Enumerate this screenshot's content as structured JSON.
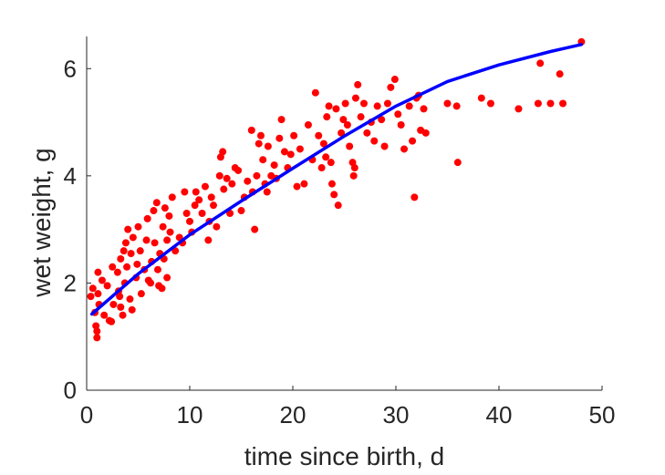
{
  "chart_data": {
    "type": "scatter",
    "xlabel": "time since birth, d",
    "ylabel": "wet weight, g",
    "xlim": [
      0,
      50
    ],
    "ylim": [
      0,
      6.6
    ],
    "xticks": [
      "0",
      "10",
      "20",
      "30",
      "40",
      "50"
    ],
    "yticks": [
      "0",
      "2",
      "4",
      "6"
    ],
    "grid": false,
    "box": false,
    "colors": {
      "points": "#ff0000",
      "curve": "#0000ff",
      "axis": "#262626"
    },
    "series": [
      {
        "type": "scatter",
        "points": [
          [
            0.4,
            1.75
          ],
          [
            0.6,
            1.9
          ],
          [
            0.8,
            1.45
          ],
          [
            0.9,
            1.2
          ],
          [
            1.0,
            1.1
          ],
          [
            1.0,
            0.98
          ],
          [
            1.1,
            1.8
          ],
          [
            1.1,
            2.2
          ],
          [
            1.2,
            1.6
          ],
          [
            1.5,
            2.05
          ],
          [
            1.7,
            1.4
          ],
          [
            2.0,
            1.95
          ],
          [
            2.2,
            1.3
          ],
          [
            2.4,
            1.28
          ],
          [
            2.5,
            2.3
          ],
          [
            2.6,
            1.6
          ],
          [
            3.0,
            2.2
          ],
          [
            3.1,
            1.85
          ],
          [
            3.2,
            1.75
          ],
          [
            3.3,
            1.55
          ],
          [
            3.3,
            2.45
          ],
          [
            3.5,
            1.4
          ],
          [
            3.6,
            2.6
          ],
          [
            3.7,
            2.0
          ],
          [
            3.8,
            2.75
          ],
          [
            3.9,
            2.3
          ],
          [
            4.0,
            3.0
          ],
          [
            4.2,
            1.7
          ],
          [
            4.3,
            2.55
          ],
          [
            4.4,
            1.5
          ],
          [
            4.5,
            2.85
          ],
          [
            4.8,
            2.1
          ],
          [
            4.9,
            2.35
          ],
          [
            5.0,
            3.05
          ],
          [
            5.2,
            2.6
          ],
          [
            5.3,
            1.8
          ],
          [
            5.6,
            2.25
          ],
          [
            5.8,
            2.8
          ],
          [
            5.9,
            3.2
          ],
          [
            6.0,
            2.05
          ],
          [
            6.2,
            2.0
          ],
          [
            6.3,
            2.4
          ],
          [
            6.5,
            3.35
          ],
          [
            6.6,
            2.75
          ],
          [
            6.8,
            3.5
          ],
          [
            6.9,
            2.25
          ],
          [
            7.0,
            1.95
          ],
          [
            7.1,
            2.55
          ],
          [
            7.3,
            1.9
          ],
          [
            7.4,
            3.05
          ],
          [
            7.5,
            2.45
          ],
          [
            7.6,
            3.4
          ],
          [
            7.8,
            2.8
          ],
          [
            7.8,
            2.1
          ],
          [
            8.0,
            3.25
          ],
          [
            8.1,
            2.95
          ],
          [
            8.3,
            3.6
          ],
          [
            8.6,
            2.6
          ],
          [
            9.0,
            2.85
          ],
          [
            9.3,
            2.75
          ],
          [
            9.5,
            3.7
          ],
          [
            9.7,
            3.3
          ],
          [
            10.0,
            3.15
          ],
          [
            10.2,
            2.95
          ],
          [
            10.5,
            3.45
          ],
          [
            10.6,
            3.7
          ],
          [
            10.9,
            3.55
          ],
          [
            11.2,
            3.3
          ],
          [
            11.5,
            3.8
          ],
          [
            11.8,
            2.8
          ],
          [
            11.9,
            3.15
          ],
          [
            12.1,
            3.6
          ],
          [
            12.3,
            3.45
          ],
          [
            12.6,
            3.05
          ],
          [
            12.9,
            4.0
          ],
          [
            13.0,
            4.35
          ],
          [
            13.2,
            4.45
          ],
          [
            13.3,
            3.75
          ],
          [
            13.6,
            3.95
          ],
          [
            13.9,
            3.3
          ],
          [
            14.1,
            3.85
          ],
          [
            14.4,
            4.15
          ],
          [
            14.7,
            4.1
          ],
          [
            15.0,
            3.35
          ],
          [
            15.3,
            3.6
          ],
          [
            15.6,
            3.9
          ],
          [
            16.0,
            4.85
          ],
          [
            16.1,
            3.7
          ],
          [
            16.3,
            3.0
          ],
          [
            16.5,
            4.0
          ],
          [
            16.7,
            4.6
          ],
          [
            16.9,
            4.75
          ],
          [
            17.1,
            4.3
          ],
          [
            17.3,
            3.85
          ],
          [
            17.5,
            3.7
          ],
          [
            17.6,
            4.55
          ],
          [
            17.9,
            4.0
          ],
          [
            18.2,
            4.2
          ],
          [
            18.4,
            3.95
          ],
          [
            18.7,
            4.7
          ],
          [
            18.9,
            5.05
          ],
          [
            19.2,
            4.45
          ],
          [
            19.5,
            4.15
          ],
          [
            19.8,
            4.4
          ],
          [
            20.1,
            4.75
          ],
          [
            20.4,
            3.8
          ],
          [
            20.7,
            4.5
          ],
          [
            21.1,
            3.85
          ],
          [
            21.5,
            4.95
          ],
          [
            21.9,
            4.3
          ],
          [
            22.2,
            5.55
          ],
          [
            22.5,
            4.75
          ],
          [
            22.8,
            4.15
          ],
          [
            23.0,
            4.6
          ],
          [
            23.2,
            4.35
          ],
          [
            23.3,
            5.1
          ],
          [
            23.5,
            5.3
          ],
          [
            23.7,
            4.25
          ],
          [
            23.8,
            3.85
          ],
          [
            24.0,
            3.65
          ],
          [
            24.2,
            5.25
          ],
          [
            24.4,
            3.45
          ],
          [
            24.7,
            4.8
          ],
          [
            24.9,
            5.05
          ],
          [
            25.1,
            5.35
          ],
          [
            25.3,
            4.95
          ],
          [
            25.5,
            4.55
          ],
          [
            25.8,
            4.25
          ],
          [
            25.9,
            4.0
          ],
          [
            26.0,
            4.15
          ],
          [
            26.1,
            5.45
          ],
          [
            26.3,
            5.7
          ],
          [
            26.6,
            5.1
          ],
          [
            26.9,
            5.35
          ],
          [
            27.2,
            4.8
          ],
          [
            27.6,
            5.0
          ],
          [
            27.9,
            4.65
          ],
          [
            28.2,
            5.3
          ],
          [
            28.6,
            5.05
          ],
          [
            28.9,
            4.55
          ],
          [
            29.2,
            5.35
          ],
          [
            29.5,
            5.65
          ],
          [
            29.9,
            5.8
          ],
          [
            30.2,
            5.15
          ],
          [
            30.5,
            4.95
          ],
          [
            30.8,
            4.5
          ],
          [
            31.3,
            5.3
          ],
          [
            31.6,
            4.65
          ],
          [
            31.8,
            3.6
          ],
          [
            32.0,
            5.45
          ],
          [
            32.2,
            5.5
          ],
          [
            32.4,
            4.85
          ],
          [
            32.7,
            5.25
          ],
          [
            32.9,
            4.8
          ],
          [
            35.0,
            5.35
          ],
          [
            35.9,
            5.3
          ],
          [
            36.0,
            4.25
          ],
          [
            38.3,
            5.45
          ],
          [
            39.2,
            5.35
          ],
          [
            41.9,
            5.25
          ],
          [
            43.8,
            5.35
          ],
          [
            44.0,
            6.1
          ],
          [
            45.0,
            5.35
          ],
          [
            45.9,
            5.9
          ],
          [
            46.2,
            5.35
          ],
          [
            48.0,
            6.5
          ]
        ]
      },
      {
        "type": "line",
        "points": [
          [
            0.5,
            1.42
          ],
          [
            5,
            2.17
          ],
          [
            10,
            2.9
          ],
          [
            15,
            3.53
          ],
          [
            20,
            4.14
          ],
          [
            25,
            4.74
          ],
          [
            30,
            5.3
          ],
          [
            35,
            5.76
          ],
          [
            40,
            6.07
          ],
          [
            45,
            6.32
          ],
          [
            48,
            6.45
          ]
        ]
      }
    ]
  }
}
